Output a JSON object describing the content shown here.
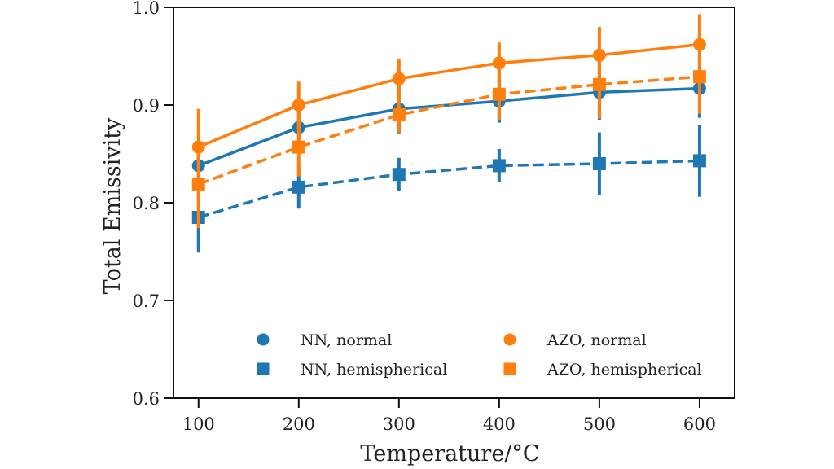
{
  "chart_data": {
    "type": "line",
    "title": "",
    "xlabel": "Temperature/°C",
    "ylabel": "Total Emissivity",
    "xlim": [
      75,
      635
    ],
    "ylim": [
      0.6,
      1.0
    ],
    "x": [
      100,
      200,
      300,
      400,
      500,
      600
    ],
    "xticks": [
      100,
      200,
      300,
      400,
      500,
      600
    ],
    "xtick_labels": [
      "100",
      "200",
      "300",
      "400",
      "500",
      "600"
    ],
    "yticks": [
      0.6,
      0.7,
      0.8,
      0.9,
      1.0
    ],
    "ytick_labels": [
      "0.6",
      "0.7",
      "0.8",
      "0.9",
      "1.0"
    ],
    "grid": false,
    "legend_position": "lower-center",
    "series": [
      {
        "name": "NN, normal",
        "color": "#1f77b4",
        "marker": "circle",
        "linestyle": "solid",
        "values": [
          0.838,
          0.877,
          0.896,
          0.904,
          0.913,
          0.917
        ],
        "errors": [
          0.025,
          0.025,
          0.025,
          0.022,
          0.028,
          0.03
        ]
      },
      {
        "name": "NN, hemispherical",
        "color": "#1f77b4",
        "marker": "square",
        "linestyle": "dashed",
        "values": [
          0.785,
          0.816,
          0.829,
          0.838,
          0.84,
          0.843
        ],
        "errors": [
          0.036,
          0.022,
          0.017,
          0.017,
          0.032,
          0.037
        ]
      },
      {
        "name": "AZO, normal",
        "color": "#ff7f0e",
        "marker": "circle",
        "linestyle": "solid",
        "values": [
          0.857,
          0.9,
          0.927,
          0.943,
          0.951,
          0.962
        ],
        "errors": [
          0.039,
          0.024,
          0.02,
          0.021,
          0.029,
          0.031
        ]
      },
      {
        "name": "AZO, hemispherical",
        "color": "#ff7f0e",
        "marker": "square",
        "linestyle": "dashed",
        "values": [
          0.819,
          0.857,
          0.89,
          0.911,
          0.921,
          0.929
        ],
        "errors": [
          0.045,
          0.03,
          0.018,
          0.026,
          0.035,
          0.038
        ]
      }
    ],
    "legend": [
      {
        "label": "NN, normal",
        "color": "#1f77b4",
        "marker": "circle"
      },
      {
        "label": "NN, hemispherical",
        "color": "#1f77b4",
        "marker": "square"
      },
      {
        "label": "AZO, normal",
        "color": "#ff7f0e",
        "marker": "circle"
      },
      {
        "label": "AZO, hemispherical",
        "color": "#ff7f0e",
        "marker": "square"
      }
    ]
  }
}
